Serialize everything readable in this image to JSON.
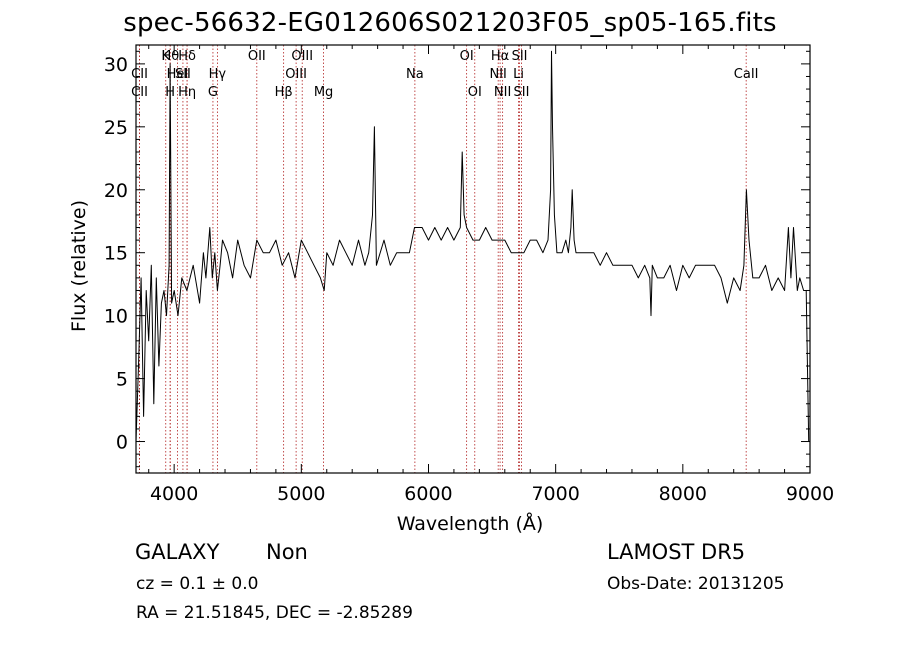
{
  "title": "spec-56632-EG012606S021203F05_sp05-165.fits",
  "chart_data": {
    "type": "line",
    "xlabel": "Wavelength (Å)",
    "ylabel": "Flux (relative)",
    "xlim": [
      3700,
      9000
    ],
    "ylim": [
      -2.5,
      31.5
    ],
    "xticks": [
      4000,
      5000,
      6000,
      7000,
      8000,
      9000
    ],
    "yticks": [
      0,
      5,
      10,
      15,
      20,
      25,
      30
    ],
    "grid": false,
    "line_color": "#000000",
    "marker_color": "#b22222",
    "series": [
      {
        "x": [
          3700,
          3720,
          3740,
          3760,
          3780,
          3800,
          3820,
          3840,
          3860,
          3880,
          3900,
          3920,
          3940,
          3960,
          3968,
          3980,
          4000,
          4030,
          4060,
          4100,
          4150,
          4200,
          4230,
          4250,
          4280,
          4300,
          4320,
          4340,
          4361,
          4380,
          4420,
          4460,
          4500,
          4550,
          4600,
          4650,
          4700,
          4750,
          4800,
          4850,
          4900,
          4950,
          5000,
          5050,
          5100,
          5150,
          5180,
          5200,
          5250,
          5300,
          5350,
          5400,
          5450,
          5500,
          5530,
          5560,
          5575,
          5590,
          5650,
          5700,
          5750,
          5800,
          5850,
          5890,
          5950,
          6000,
          6050,
          6100,
          6150,
          6200,
          6250,
          6265,
          6280,
          6300,
          6350,
          6400,
          6450,
          6500,
          6550,
          6600,
          6650,
          6700,
          6750,
          6800,
          6850,
          6900,
          6940,
          6960,
          6967,
          6975,
          6990,
          7010,
          7050,
          7080,
          7100,
          7120,
          7130,
          7145,
          7160,
          7200,
          7250,
          7300,
          7350,
          7400,
          7450,
          7500,
          7550,
          7600,
          7650,
          7700,
          7740,
          7750,
          7760,
          7800,
          7850,
          7900,
          7950,
          8000,
          8050,
          8100,
          8150,
          8200,
          8250,
          8300,
          8350,
          8400,
          8450,
          8480,
          8500,
          8520,
          8550,
          8600,
          8650,
          8700,
          8750,
          8800,
          8830,
          8850,
          8870,
          8900,
          8920,
          8950,
          8970,
          8990,
          9000
        ],
        "y": [
          0,
          6,
          13,
          2,
          12,
          8,
          14,
          3,
          13,
          6,
          11,
          12,
          10,
          14,
          30,
          11,
          12,
          10,
          13,
          12,
          14,
          11,
          15,
          13,
          17,
          13,
          15,
          12,
          14,
          16,
          15,
          13,
          16,
          14,
          13,
          16,
          15,
          15,
          16,
          14,
          15,
          13,
          16,
          15,
          14,
          13,
          12,
          15,
          14,
          16,
          15,
          14,
          16,
          14,
          15,
          18,
          25,
          14,
          16,
          14,
          15,
          15,
          15,
          17,
          17,
          16,
          17,
          16,
          17,
          16,
          17,
          23,
          18,
          17,
          16,
          16,
          17,
          16,
          16,
          16,
          15,
          15,
          15,
          16,
          16,
          15,
          16,
          20,
          31,
          25,
          18,
          15,
          15,
          16,
          15,
          17,
          20,
          16,
          15,
          15,
          15,
          15,
          14,
          15,
          14,
          14,
          14,
          14,
          13,
          14,
          13,
          10,
          14,
          13,
          13,
          14,
          12,
          14,
          13,
          14,
          14,
          14,
          14,
          13,
          11,
          13,
          12,
          14,
          20,
          16,
          13,
          13,
          14,
          12,
          13,
          12,
          17,
          13,
          17,
          12,
          13,
          12,
          12,
          0,
          0
        ]
      }
    ],
    "lines": [
      {
        "name": "CII",
        "wl": 3728,
        "row": 2
      },
      {
        "name": "CII",
        "wl": 3728,
        "row": 3
      },
      {
        "name": "Hθ",
        "wl": 3970,
        "row": 1
      },
      {
        "name": "Hη",
        "wl": 4102,
        "row": 3
      },
      {
        "name": "HeI",
        "wl": 4026,
        "row": 2
      },
      {
        "name": "K",
        "wl": 3934,
        "row": 1
      },
      {
        "name": "H",
        "wl": 3968,
        "row": 3
      },
      {
        "name": "Hδ",
        "wl": 4102,
        "row": 1
      },
      {
        "name": "SII",
        "wl": 4069,
        "row": 2
      },
      {
        "name": "OII",
        "wl": 4650,
        "row": 1
      },
      {
        "name": "Hγ",
        "wl": 4340,
        "row": 2
      },
      {
        "name": "G",
        "wl": 4305,
        "row": 3
      },
      {
        "name": "Hβ",
        "wl": 4861,
        "row": 3
      },
      {
        "name": "OIII",
        "wl": 5007,
        "row": 1
      },
      {
        "name": "OIII",
        "wl": 4959,
        "row": 2
      },
      {
        "name": "Mg",
        "wl": 5175,
        "row": 3
      },
      {
        "name": "Na",
        "wl": 5893,
        "row": 2
      },
      {
        "name": "OI",
        "wl": 6300,
        "row": 1
      },
      {
        "name": "OI",
        "wl": 6364,
        "row": 3
      },
      {
        "name": "Hα",
        "wl": 6563,
        "row": 1
      },
      {
        "name": "NII",
        "wl": 6548,
        "row": 2
      },
      {
        "name": "NII",
        "wl": 6583,
        "row": 3
      },
      {
        "name": "SII",
        "wl": 6716,
        "row": 1
      },
      {
        "name": "Li",
        "wl": 6708,
        "row": 2
      },
      {
        "name": "SII",
        "wl": 6731,
        "row": 3
      },
      {
        "name": "CaII",
        "wl": 8498,
        "row": 2
      }
    ]
  },
  "info": {
    "class": "GALAXY",
    "subclass": "Non",
    "cz": "cz = 0.1 ± 0.0",
    "coords": "RA =  21.51845, DEC =  -2.85289",
    "survey": "LAMOST DR5",
    "obsdate": "Obs-Date: 20131205"
  }
}
